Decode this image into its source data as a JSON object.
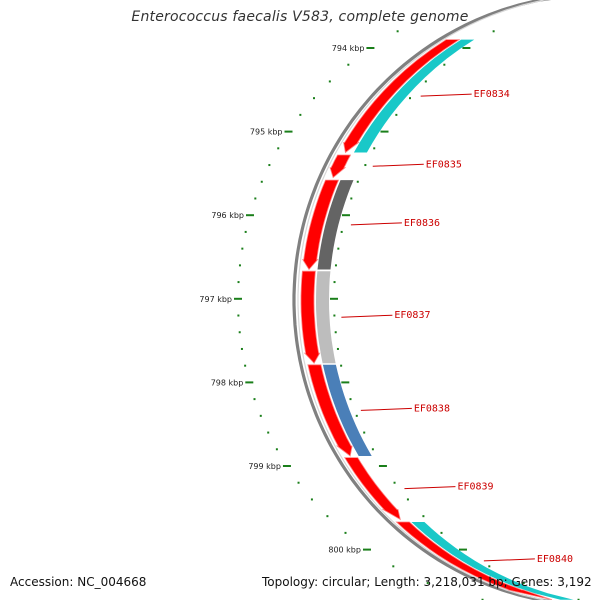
{
  "title": "Enterococcus faecalis V583, complete genome",
  "footer": {
    "accession": "Accession: NC_004668",
    "summary": "Topology: circular; Length: 3,218,031 bp; Genes: 3,192"
  },
  "colors": {
    "background": "#ffffff",
    "backbone": "#808080",
    "tick": "#1a7f1a",
    "cds_forward": "#ff0000",
    "gene_label": "#cc0000",
    "label_line": "#cc0000",
    "cyan_block": "#19c8c8",
    "dark_gray_block": "#646464",
    "light_gray_block": "#bdbdbd",
    "blue_block": "#4a7fb8"
  },
  "axis": {
    "unit": "kbp",
    "ticks": [
      {
        "label": "794 kbp",
        "kbp": 794
      },
      {
        "label": "795 kbp",
        "kbp": 795
      },
      {
        "label": "796 kbp",
        "kbp": 796
      },
      {
        "label": "797 kbp",
        "kbp": 797
      },
      {
        "label": "798 kbp",
        "kbp": 798
      },
      {
        "label": "799 kbp",
        "kbp": 799
      },
      {
        "label": "800 kbp",
        "kbp": 800
      }
    ]
  },
  "genes": [
    {
      "label": "EF0834",
      "start_kbp": 793.9,
      "end_kbp": 795.25,
      "strand": "+",
      "block": "cyan_block"
    },
    {
      "label": "EF0835",
      "start_kbp": 795.28,
      "end_kbp": 795.55,
      "strand": "+",
      "block": null
    },
    {
      "label": "EF0836",
      "start_kbp": 795.58,
      "end_kbp": 796.65,
      "strand": "+",
      "block": "dark_gray_block"
    },
    {
      "label": "EF0837",
      "start_kbp": 796.67,
      "end_kbp": 797.77,
      "strand": "+",
      "block": "light_gray_block"
    },
    {
      "label": "EF0838",
      "start_kbp": 797.79,
      "end_kbp": 798.88,
      "strand": "+",
      "block": "blue_block"
    },
    {
      "label": "EF0839",
      "start_kbp": 798.9,
      "end_kbp": 799.64,
      "strand": "+",
      "block": null
    },
    {
      "label": "EF0840",
      "start_kbp": 799.67,
      "end_kbp": 800.6,
      "strand": "+",
      "block": "cyan_block"
    }
  ]
}
